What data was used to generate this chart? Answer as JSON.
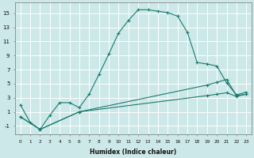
{
  "xlabel": "Humidex (Indice chaleur)",
  "bg_color": "#cce8e8",
  "grid_color": "#b8d8d8",
  "line_color": "#1a7a6e",
  "xlim": [
    -0.5,
    23.5
  ],
  "ylim": [
    -2.2,
    16.5
  ],
  "xticks": [
    0,
    1,
    2,
    3,
    4,
    5,
    6,
    7,
    8,
    9,
    10,
    11,
    12,
    13,
    14,
    15,
    16,
    17,
    18,
    19,
    20,
    21,
    22,
    23
  ],
  "yticks": [
    -1,
    1,
    3,
    5,
    7,
    9,
    11,
    13,
    15
  ],
  "line1_x": [
    0,
    1,
    2,
    3,
    4,
    5,
    6,
    7,
    8,
    9,
    10,
    11,
    12,
    13,
    14,
    15,
    16,
    17,
    18,
    19,
    20,
    21,
    22,
    23
  ],
  "line1_y": [
    2.0,
    -0.5,
    -1.5,
    0.5,
    2.3,
    2.3,
    1.6,
    3.5,
    6.3,
    9.2,
    12.2,
    14.0,
    15.5,
    15.5,
    15.3,
    15.1,
    14.6,
    12.3,
    8.0,
    7.8,
    7.5,
    5.1,
    3.4,
    3.8
  ],
  "line2_x": [
    0,
    2,
    6,
    19,
    20,
    21,
    22,
    23
  ],
  "line2_y": [
    0.3,
    -1.5,
    1.0,
    4.8,
    5.2,
    5.6,
    3.3,
    3.5
  ],
  "line3_x": [
    0,
    2,
    6,
    19,
    20,
    21,
    22,
    23
  ],
  "line3_y": [
    0.3,
    -1.5,
    1.0,
    3.3,
    3.5,
    3.7,
    3.2,
    3.5
  ]
}
